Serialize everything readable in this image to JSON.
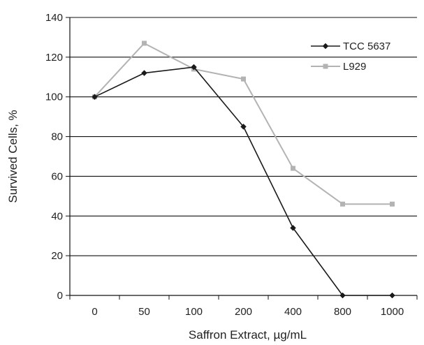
{
  "chart_data": {
    "type": "line",
    "title": "",
    "xlabel": "Saffron Extract,  µg/mL",
    "ylabel": "Survived Cells, %",
    "categories": [
      "0",
      "50",
      "100",
      "200",
      "400",
      "800",
      "1000"
    ],
    "ylim": [
      0,
      140
    ],
    "yticks": [
      "0",
      "20",
      "40",
      "60",
      "80",
      "100",
      "120",
      "140"
    ],
    "grid": true,
    "legend_position": "top-right",
    "series": [
      {
        "name": "TCC 5637",
        "values": [
          100,
          112,
          115,
          85,
          34,
          0,
          0
        ],
        "color": "#1a1a1a",
        "marker": "diamond"
      },
      {
        "name": "L929",
        "values": [
          100,
          127,
          114,
          109,
          64,
          46,
          46
        ],
        "color": "#b3b3b3",
        "marker": "square"
      }
    ]
  }
}
